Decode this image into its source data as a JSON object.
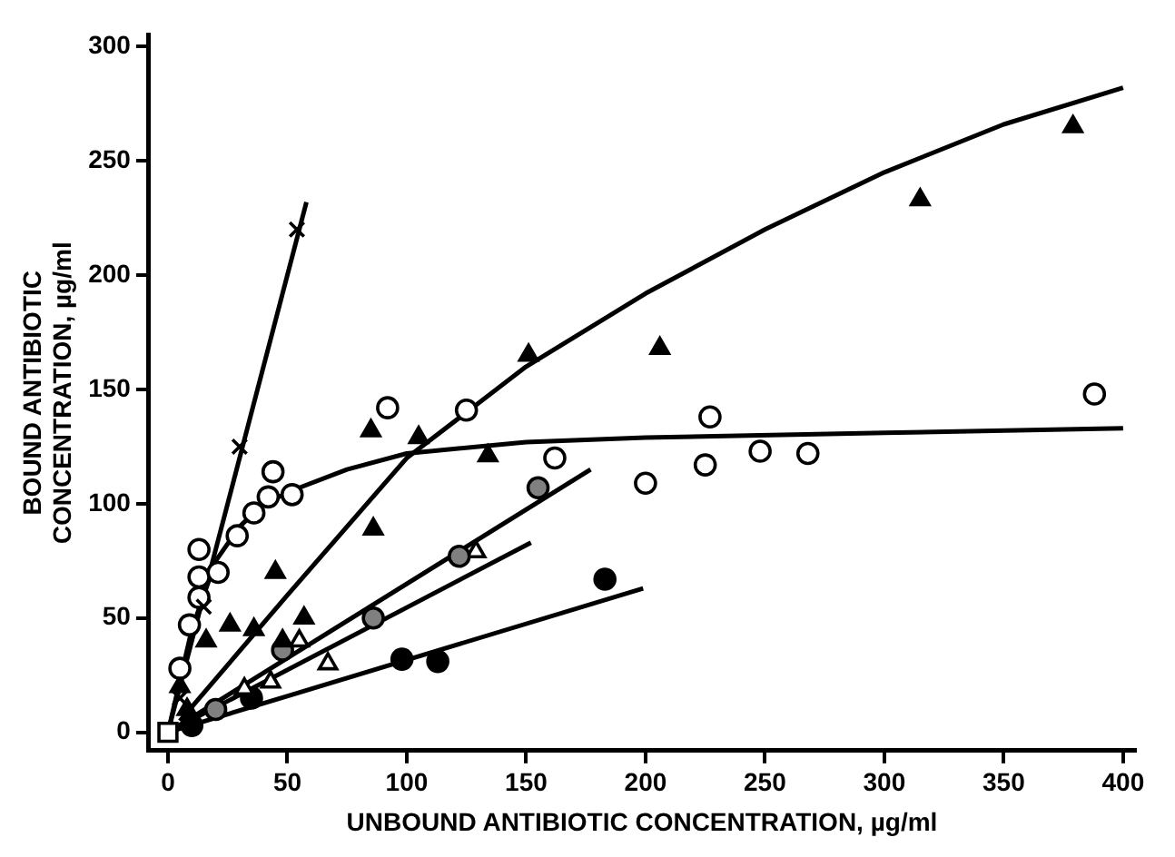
{
  "chart_data": {
    "type": "scatter",
    "xlabel": "UNBOUND ANTIBIOTIC CONCENTRATION, µg/ml",
    "ylabel": "BOUND ANTIBIOTIC\nCONCENTRATION, µg/ml",
    "xlim": [
      -8,
      405
    ],
    "ylim": [
      -8,
      305
    ],
    "xticks": [
      0,
      50,
      100,
      150,
      200,
      250,
      300,
      350,
      400
    ],
    "yticks": [
      0,
      50,
      100,
      150,
      200,
      250,
      300
    ],
    "grid": false,
    "legend": false,
    "series": [
      {
        "marker": "square",
        "color": "#ffffff",
        "x": [
          0
        ],
        "values": [
          0
        ]
      },
      {
        "marker": "cross",
        "color": "#000000",
        "x": [
          5,
          15,
          30,
          54
        ],
        "values": [
          15,
          55,
          125,
          220
        ]
      },
      {
        "marker": "circle",
        "color": "#ffffff",
        "x": [
          5,
          9,
          13,
          13,
          13,
          21,
          29,
          36,
          42,
          44,
          52,
          92,
          125,
          162,
          200,
          225,
          227,
          248,
          268,
          388
        ],
        "values": [
          28,
          47,
          59,
          68,
          80,
          70,
          86,
          96,
          103,
          114,
          104,
          142,
          141,
          120,
          109,
          117,
          138,
          123,
          122,
          148
        ]
      },
      {
        "marker": "triangle",
        "color": "#000000",
        "x": [
          5,
          8,
          16,
          26,
          36,
          45,
          48,
          57,
          85,
          86,
          105,
          134,
          151,
          206,
          315,
          379
        ],
        "values": [
          20,
          10,
          40,
          47,
          45,
          70,
          40,
          50,
          132,
          89,
          129,
          121,
          165,
          168,
          233,
          265
        ]
      },
      {
        "marker": "circle",
        "color": "#808080",
        "x": [
          20,
          48,
          86,
          122,
          155
        ],
        "values": [
          10,
          36,
          50,
          77,
          107
        ]
      },
      {
        "marker": "triangle",
        "color": "#ffffff",
        "x": [
          32,
          43,
          55,
          67,
          129
        ],
        "values": [
          19,
          22,
          40,
          30,
          79
        ]
      },
      {
        "marker": "circle",
        "color": "#000000",
        "x": [
          10,
          35,
          98,
          113,
          183
        ],
        "values": [
          3,
          15,
          32,
          31,
          67
        ]
      },
      {
        "type": "line",
        "marker": "none",
        "color": "#000000",
        "x": [
          0,
          58
        ],
        "values": [
          0,
          232
        ]
      },
      {
        "type": "line",
        "marker": "none",
        "color": "#000000",
        "x": [
          0,
          10,
          20,
          30,
          40,
          55,
          75,
          100,
          150,
          200,
          300,
          400
        ],
        "values": [
          0,
          45,
          75,
          90,
          100,
          107,
          115,
          122,
          127,
          129,
          131,
          133
        ]
      },
      {
        "type": "line",
        "marker": "none",
        "color": "#000000",
        "x": [
          5,
          50,
          100,
          150,
          200,
          250,
          300,
          350,
          400
        ],
        "values": [
          5,
          60,
          120,
          160,
          192,
          220,
          245,
          266,
          282
        ]
      },
      {
        "type": "line",
        "marker": "none",
        "color": "#000000",
        "x": [
          0,
          177
        ],
        "values": [
          0,
          115
        ]
      },
      {
        "type": "line",
        "marker": "none",
        "color": "#000000",
        "x": [
          0,
          152
        ],
        "values": [
          0,
          83
        ]
      },
      {
        "type": "line",
        "marker": "none",
        "color": "#000000",
        "x": [
          0,
          199
        ],
        "values": [
          0,
          63
        ]
      }
    ]
  }
}
